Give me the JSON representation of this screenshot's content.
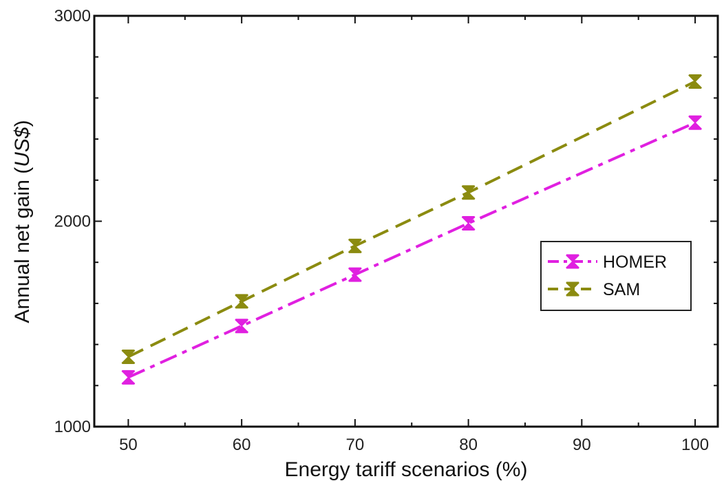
{
  "chart_data": {
    "type": "line",
    "title": "",
    "xlabel": "Energy tariff scenarios (%)",
    "ylabel_prefix": "Annual net gain (",
    "ylabel_unit": "US$",
    "ylabel_suffix": ")",
    "x": [
      50,
      60,
      70,
      80,
      90,
      100
    ],
    "x_ticks": [
      "50",
      "60",
      "70",
      "80",
      "90",
      "100"
    ],
    "y_ticks": [
      "1000",
      "2000",
      "3000"
    ],
    "xlim": [
      47,
      102
    ],
    "ylim": [
      1000,
      3000
    ],
    "grid": false,
    "legend_position": "right",
    "series": [
      {
        "name": "HOMER",
        "x": [
          50,
          60,
          70,
          80,
          100
        ],
        "values": [
          1240,
          1490,
          1740,
          1990,
          2480
        ],
        "color": "#e020e0",
        "style": "dash-dot"
      },
      {
        "name": "SAM",
        "x": [
          50,
          60,
          70,
          80,
          100
        ],
        "values": [
          1340,
          1610,
          1880,
          2140,
          2680
        ],
        "color": "#8b8b10",
        "style": "dashed"
      }
    ]
  }
}
